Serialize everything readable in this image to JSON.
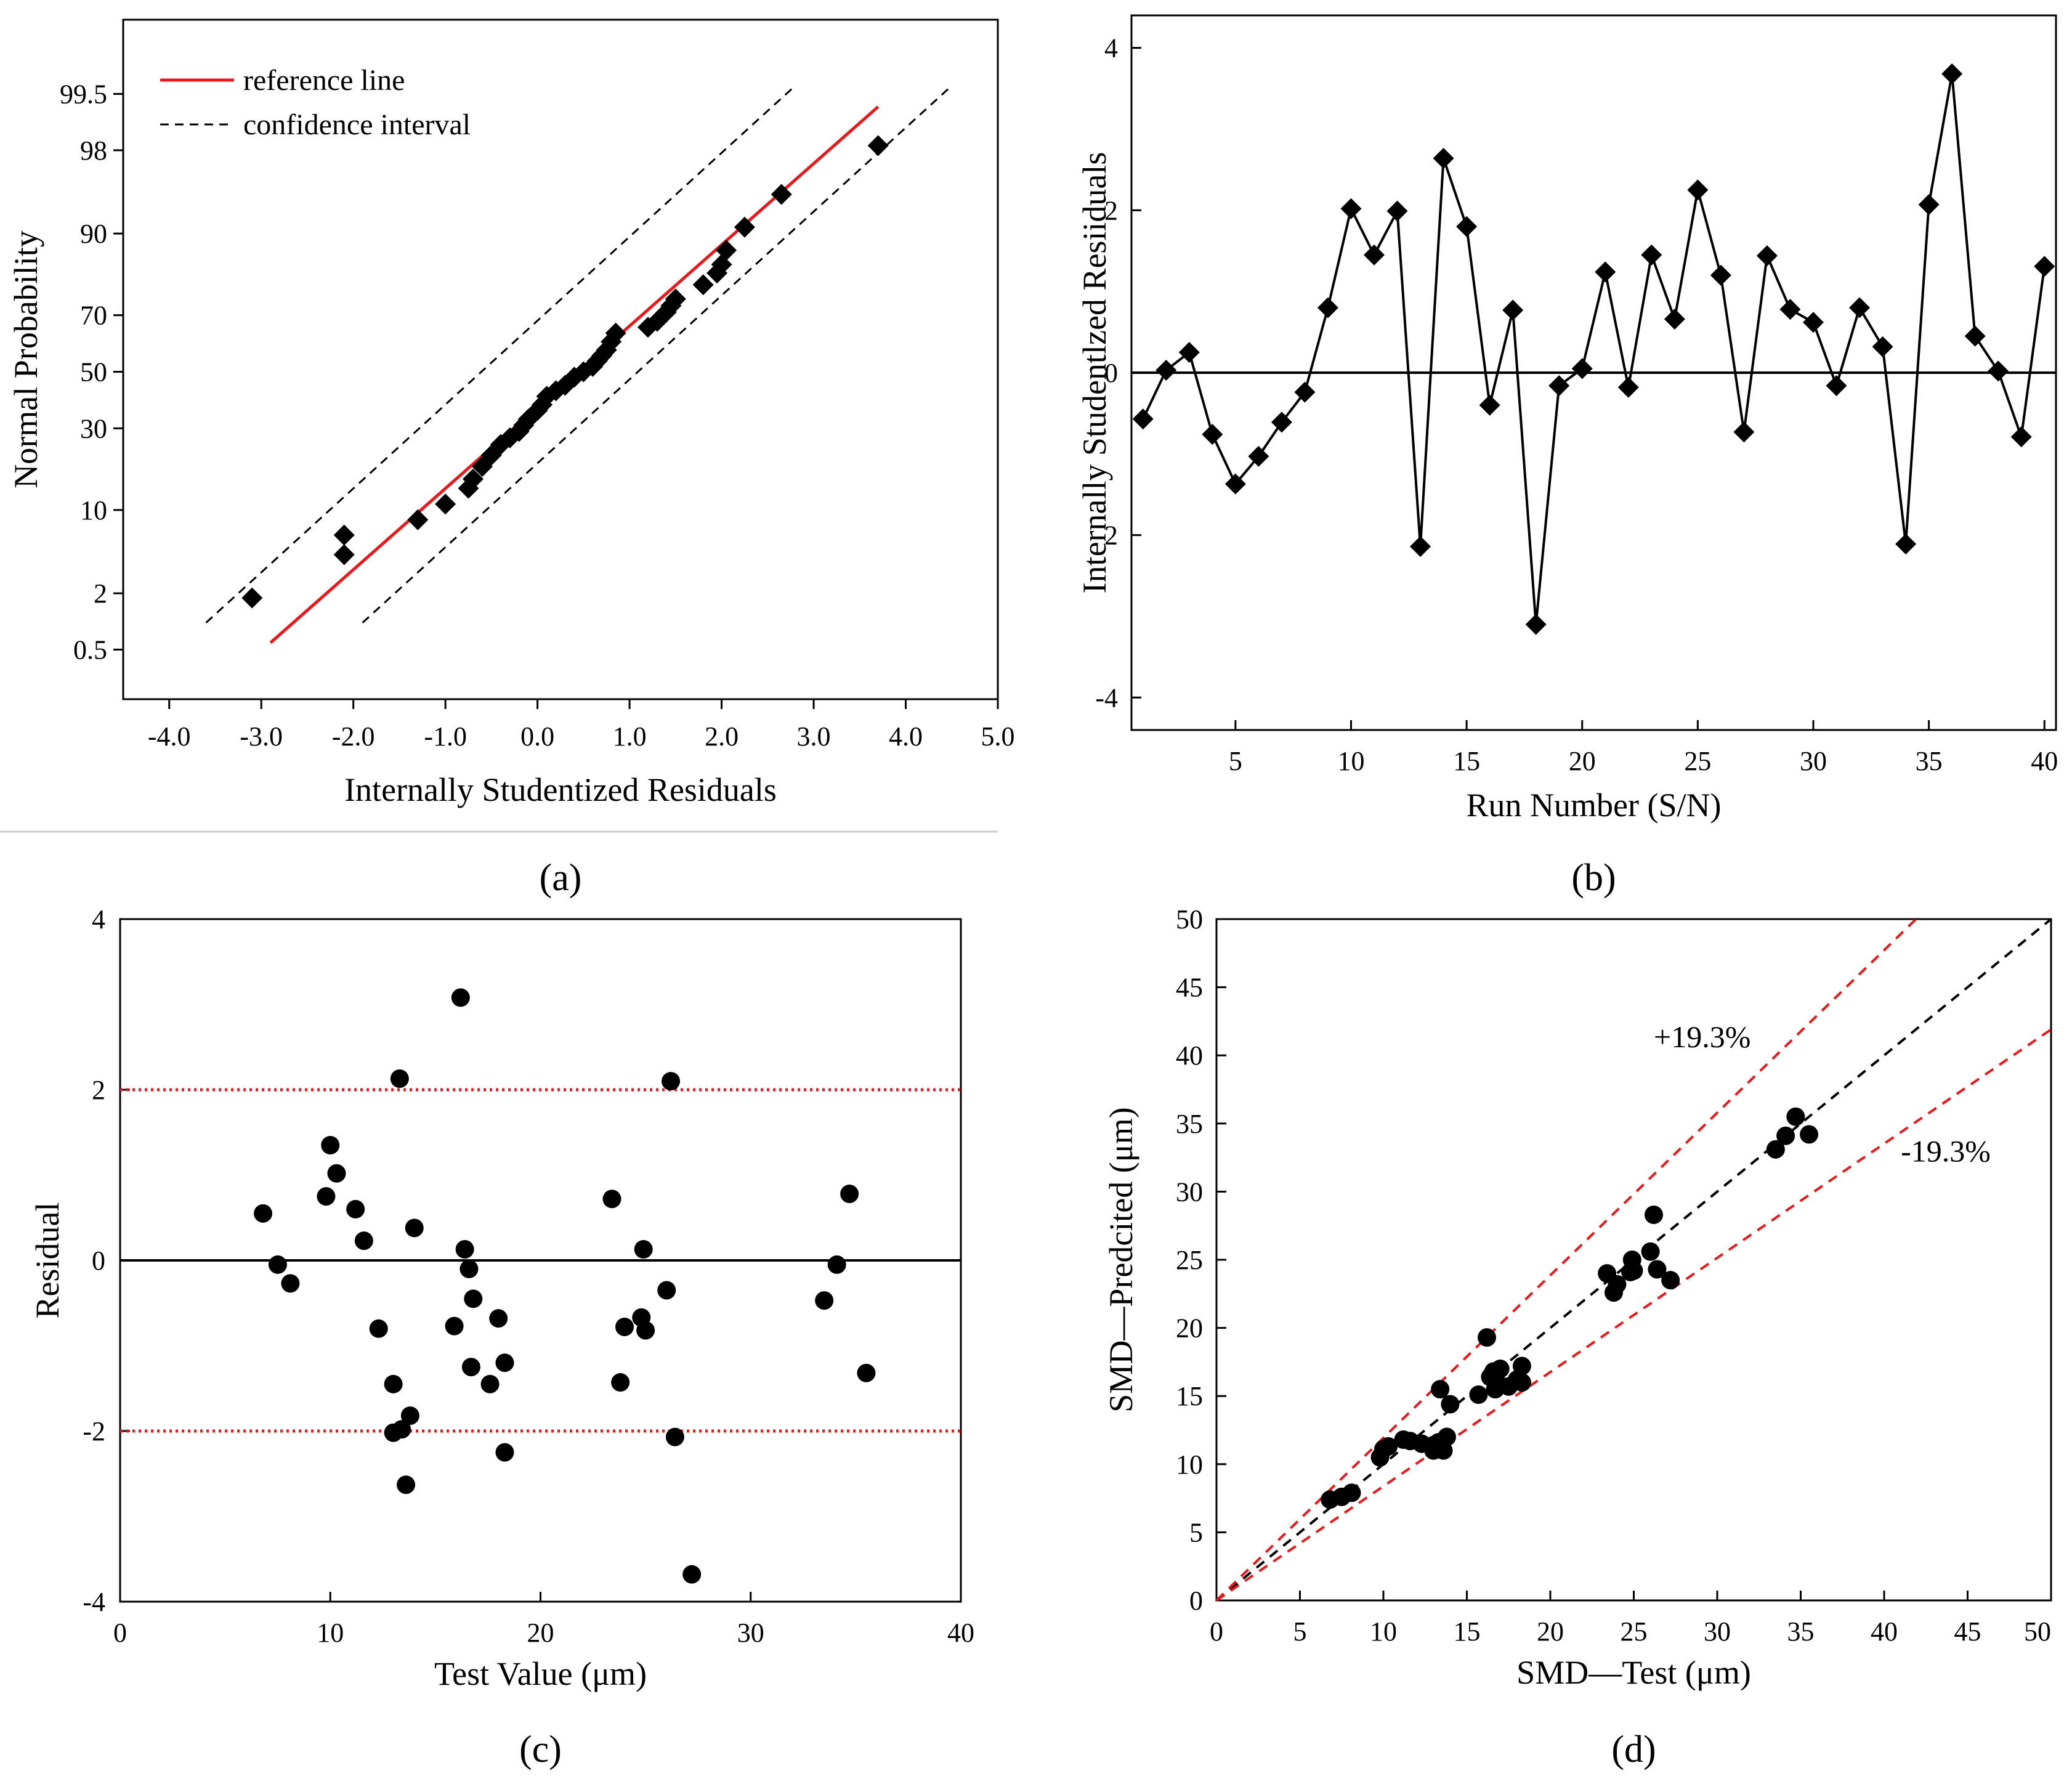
{
  "chart_data": [
    {
      "type": "scatter",
      "panel_label": "(a)",
      "xlabel": "Internally Studentized Residuals",
      "ylabel": "Normal Probability",
      "xlim": [
        -4.5,
        5.0
      ],
      "x_ticks": [
        "-4.0",
        "-3.0",
        "-2.0",
        "-1.0",
        "0.0",
        "1.0",
        "2.0",
        "3.0",
        "4.0",
        "5.0"
      ],
      "y_ticks": [
        "0.5",
        "2",
        "10",
        "30",
        "50",
        "70",
        "90",
        "98",
        "99.5"
      ],
      "y_scale": "normal probability",
      "legend_position": "top-left",
      "legend": [
        "reference line",
        "confidence interval"
      ],
      "series": [
        {
          "name": "reference line",
          "style": "solid",
          "color": "#e41a1c",
          "points": [
            [
              -2.9,
              0.6
            ],
            [
              3.7,
              99.3
            ]
          ]
        },
        {
          "name": "confidence interval",
          "style": "dashed",
          "color": "#000000",
          "upper": [
            [
              -3.6,
              1.0
            ],
            [
              2.8,
              99.6
            ]
          ],
          "lower": [
            [
              -1.9,
              1.0
            ],
            [
              4.5,
              99.6
            ]
          ]
        },
        {
          "marker": "diamond",
          "points": [
            [
              -3.1,
              1.8
            ],
            [
              -2.1,
              4.5
            ],
            [
              -2.1,
              6.5
            ],
            [
              -1.3,
              8.5
            ],
            [
              -1.0,
              11
            ],
            [
              -0.75,
              14
            ],
            [
              -0.7,
              16
            ],
            [
              -0.6,
              19
            ],
            [
              -0.5,
              22
            ],
            [
              -0.4,
              25
            ],
            [
              -0.3,
              27
            ],
            [
              -0.2,
              29
            ],
            [
              -0.15,
              31
            ],
            [
              -0.1,
              33
            ],
            [
              0.0,
              36
            ],
            [
              0.05,
              38
            ],
            [
              0.1,
              41
            ],
            [
              0.2,
              43
            ],
            [
              0.3,
              45
            ],
            [
              0.4,
              48
            ],
            [
              0.5,
              50
            ],
            [
              0.6,
              52
            ],
            [
              0.65,
              54
            ],
            [
              0.7,
              56
            ],
            [
              0.75,
              58
            ],
            [
              0.8,
              61
            ],
            [
              0.85,
              64
            ],
            [
              1.2,
              66
            ],
            [
              1.3,
              68
            ],
            [
              1.4,
              71
            ],
            [
              1.45,
              73
            ],
            [
              1.5,
              75
            ],
            [
              1.8,
              79
            ],
            [
              1.95,
              82
            ],
            [
              2.0,
              84
            ],
            [
              2.05,
              87
            ],
            [
              2.25,
              91
            ],
            [
              2.65,
              95
            ],
            [
              3.7,
              98.2
            ]
          ]
        }
      ]
    },
    {
      "type": "line",
      "panel_label": "(b)",
      "xlabel": "Run Number (S/N)",
      "ylabel": "Internally Studentlzed Resiiduals",
      "xlim": [
        0.5,
        40.5
      ],
      "ylim": [
        -4.4,
        4.4
      ],
      "x_ticks": [
        5,
        10,
        15,
        20,
        25,
        30,
        35,
        40
      ],
      "y_ticks": [
        -4,
        -2,
        0,
        2,
        4
      ],
      "reference_line_y": 0,
      "x": [
        1,
        2,
        3,
        4,
        5,
        6,
        7,
        8,
        9,
        10,
        11,
        12,
        13,
        14,
        15,
        16,
        17,
        18,
        19,
        20,
        21,
        22,
        23,
        24,
        25,
        26,
        27,
        28,
        29,
        30,
        31,
        32,
        33,
        34,
        35,
        36,
        37,
        38,
        39,
        40
      ],
      "y": [
        -0.57,
        0.03,
        0.25,
        -0.76,
        -1.37,
        -1.03,
        -0.61,
        -0.24,
        0.8,
        2.02,
        1.45,
        1.99,
        -2.14,
        2.64,
        1.8,
        -0.4,
        0.77,
        -3.1,
        -0.16,
        0.05,
        1.24,
        -0.18,
        1.45,
        0.66,
        2.25,
        1.2,
        -0.73,
        1.44,
        0.78,
        0.62,
        -0.16,
        0.8,
        0.32,
        -2.11,
        2.07,
        3.68,
        0.45,
        0.02,
        -0.79,
        1.31
      ]
    },
    {
      "type": "scatter",
      "panel_label": "(c)",
      "xlabel": "Test Value (μm)",
      "ylabel": "Residual",
      "xlim": [
        0,
        40
      ],
      "ylim": [
        -4,
        4
      ],
      "x_ticks": [
        0,
        10,
        20,
        30,
        40
      ],
      "y_ticks": [
        -4,
        -2,
        0,
        2,
        4
      ],
      "reference_lines": [
        {
          "y": 2,
          "style": "dotted",
          "color": "#e41a1c"
        },
        {
          "y": -2,
          "style": "dotted",
          "color": "#e41a1c"
        },
        {
          "y": 0,
          "style": "solid",
          "color": "#000000"
        }
      ],
      "points": [
        [
          6.8,
          0.55
        ],
        [
          7.5,
          -0.05
        ],
        [
          8.1,
          -0.27
        ],
        [
          9.8,
          0.75
        ],
        [
          10.0,
          1.35
        ],
        [
          10.3,
          1.02
        ],
        [
          11.2,
          0.6
        ],
        [
          11.6,
          0.23
        ],
        [
          12.3,
          -0.8
        ],
        [
          13.0,
          -1.45
        ],
        [
          13.0,
          -2.02
        ],
        [
          13.3,
          2.13
        ],
        [
          13.4,
          -1.98
        ],
        [
          13.6,
          -2.63
        ],
        [
          13.8,
          -1.82
        ],
        [
          14.0,
          0.38
        ],
        [
          15.9,
          -0.77
        ],
        [
          16.2,
          3.08
        ],
        [
          16.4,
          0.13
        ],
        [
          16.6,
          -0.1
        ],
        [
          16.7,
          -1.25
        ],
        [
          16.8,
          -0.45
        ],
        [
          17.6,
          -1.45
        ],
        [
          18.0,
          -0.68
        ],
        [
          18.3,
          -1.2
        ],
        [
          18.3,
          -2.25
        ],
        [
          23.4,
          0.72
        ],
        [
          23.8,
          -1.43
        ],
        [
          24.0,
          -0.78
        ],
        [
          24.8,
          -0.67
        ],
        [
          24.9,
          0.13
        ],
        [
          25.0,
          -0.82
        ],
        [
          26.0,
          -0.35
        ],
        [
          26.2,
          2.1
        ],
        [
          26.4,
          -2.07
        ],
        [
          27.2,
          -3.68
        ],
        [
          33.5,
          -0.47
        ],
        [
          34.1,
          -0.05
        ],
        [
          34.7,
          0.78
        ],
        [
          35.5,
          -1.32
        ]
      ]
    },
    {
      "type": "scatter",
      "panel_label": "(d)",
      "xlabel": "SMD—Test (μm)",
      "ylabel": "SMD—Predcited (μm)",
      "xlim": [
        0,
        50
      ],
      "ylim": [
        0,
        50
      ],
      "x_ticks": [
        0,
        5,
        10,
        15,
        20,
        25,
        30,
        35,
        40,
        45,
        50
      ],
      "y_ticks": [
        0,
        5,
        10,
        15,
        20,
        25,
        30,
        35,
        40,
        45,
        50
      ],
      "annotations": [
        "+19.3%",
        "-19.3%"
      ],
      "reference_lines": [
        {
          "slope": 1.0,
          "style": "dashed",
          "color": "#000000"
        },
        {
          "slope": 1.193,
          "style": "dashed",
          "color": "#e41a1c"
        },
        {
          "slope": 0.838,
          "style": "dashed",
          "color": "#e41a1c"
        }
      ],
      "points": [
        [
          6.8,
          7.4
        ],
        [
          7.5,
          7.6
        ],
        [
          8.1,
          7.9
        ],
        [
          9.8,
          10.5
        ],
        [
          10.0,
          11.1
        ],
        [
          10.3,
          11.3
        ],
        [
          11.2,
          11.8
        ],
        [
          11.6,
          11.7
        ],
        [
          12.3,
          11.5
        ],
        [
          13.0,
          11.4
        ],
        [
          13.0,
          11.0
        ],
        [
          13.3,
          11.6
        ],
        [
          13.4,
          15.5
        ],
        [
          13.6,
          11.0
        ],
        [
          13.8,
          12.0
        ],
        [
          14.0,
          14.4
        ],
        [
          15.7,
          15.1
        ],
        [
          16.2,
          19.3
        ],
        [
          16.4,
          16.4
        ],
        [
          16.6,
          16.8
        ],
        [
          16.7,
          15.5
        ],
        [
          16.8,
          16.0
        ],
        [
          17.0,
          17.0
        ],
        [
          17.5,
          15.7
        ],
        [
          18.0,
          16.2
        ],
        [
          18.3,
          17.2
        ],
        [
          18.3,
          16.0
        ],
        [
          23.4,
          24.0
        ],
        [
          23.8,
          22.6
        ],
        [
          24.0,
          23.2
        ],
        [
          24.8,
          24.1
        ],
        [
          24.9,
          25.0
        ],
        [
          25.0,
          24.2
        ],
        [
          26.0,
          25.6
        ],
        [
          26.2,
          28.3
        ],
        [
          26.4,
          24.3
        ],
        [
          27.2,
          23.5
        ],
        [
          33.5,
          33.1
        ],
        [
          34.1,
          34.1
        ],
        [
          34.7,
          35.5
        ],
        [
          35.5,
          34.2
        ]
      ]
    }
  ]
}
